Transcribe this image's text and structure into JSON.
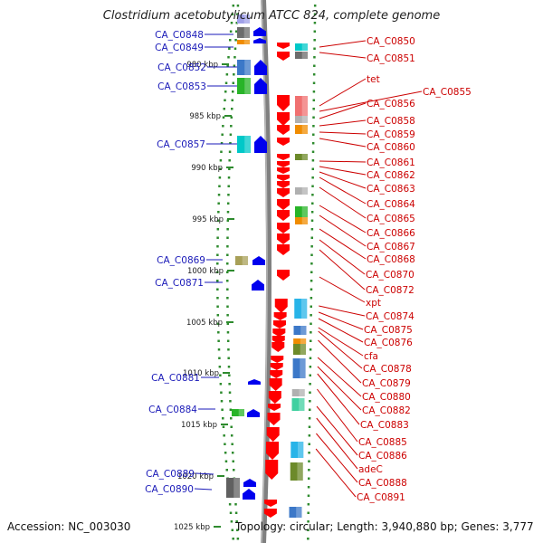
{
  "title": "Clostridium acetobutylicum ATCC 824, complete genome",
  "footer": {
    "accession": "Accession: NC_003030",
    "summary": "Topology: circular; Length: 3,940,880 bp; Genes: 3,777"
  },
  "colors": {
    "left_label": "#1a1ab8",
    "right_label": "#cc0000",
    "left_arrow": "#0000ee",
    "right_arrow": "#ff0000",
    "backbone": "#808080",
    "tick_dots": "#2e8b2e"
  },
  "ruler": [
    {
      "label": "980 kbp",
      "pos_bp": 980000
    },
    {
      "label": "985 kbp",
      "pos_bp": 985000
    },
    {
      "label": "990 kbp",
      "pos_bp": 990000
    },
    {
      "label": "995 kbp",
      "pos_bp": 995000
    },
    {
      "label": "1000 kbp",
      "pos_bp": 1000000
    },
    {
      "label": "1005 kbp",
      "pos_bp": 1005000
    },
    {
      "label": "1010 kbp",
      "pos_bp": 1010000
    },
    {
      "label": "1015 kbp",
      "pos_bp": 1015000
    },
    {
      "label": "1020 kbp",
      "pos_bp": 1020000
    },
    {
      "label": "1025 kbp",
      "pos_bp": 1025000
    }
  ],
  "left_genes": [
    "CA_C0848",
    "CA_C0849",
    "CA_C0852",
    "CA_C0853",
    "CA_C0857",
    "CA_C0869",
    "CA_C0871",
    "CA_C0881",
    "CA_C0884",
    "CA_C0889",
    "CA_C0890"
  ],
  "right_genes": [
    "CA_C0850",
    "CA_C0851",
    "tet",
    "CA_C0855",
    "CA_C0856",
    "CA_C0858",
    "CA_C0859",
    "CA_C0860",
    "CA_C0861",
    "CA_C0862",
    "CA_C0863",
    "CA_C0864",
    "CA_C0865",
    "CA_C0866",
    "CA_C0867",
    "CA_C0868",
    "CA_C0870",
    "CA_C0872",
    "xpt",
    "CA_C0874",
    "CA_C0875",
    "CA_C0876",
    "cfa",
    "CA_C0878",
    "CA_C0879",
    "CA_C0880",
    "CA_C0882",
    "CA_C0883",
    "CA_C0885",
    "CA_C0886",
    "adeC",
    "CA_C0888",
    "CA_C0891"
  ]
}
